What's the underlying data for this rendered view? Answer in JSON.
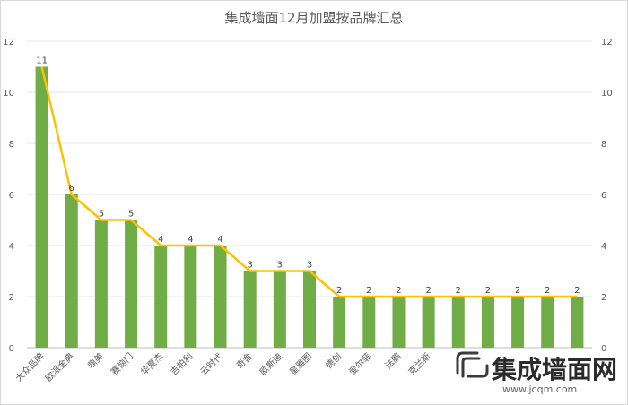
{
  "chart_data": {
    "type": "bar",
    "title": "集成墙面12月加盟按品牌汇总",
    "categories": [
      "大众品牌",
      "欧派金典",
      "鼎美",
      "赛恼门",
      "华夏杰",
      "吉柏利",
      "云时代",
      "奇舍",
      "欧斯迪",
      "星雅图",
      "德创",
      "爱尔菲",
      "法鹏",
      "克兰斯",
      "",
      "",
      "",
      "",
      ""
    ],
    "values": [
      11,
      6,
      5,
      5,
      4,
      4,
      4,
      3,
      3,
      3,
      2,
      2,
      2,
      2,
      2,
      2,
      2,
      2,
      2
    ],
    "ylim": [
      0,
      12
    ],
    "yticks": [
      0,
      2,
      4,
      6,
      8,
      10,
      12
    ],
    "secondary_yticks": [
      0,
      2,
      4,
      6,
      8,
      10,
      12
    ],
    "grid": true,
    "bar_color": "#70ad47",
    "line_color": "#ffc000",
    "overlay_line": true,
    "data_labels": true
  },
  "watermark": {
    "main": "集成墙面网",
    "sub": "www.jcqm.com",
    "icon": "jc-logo-icon"
  }
}
